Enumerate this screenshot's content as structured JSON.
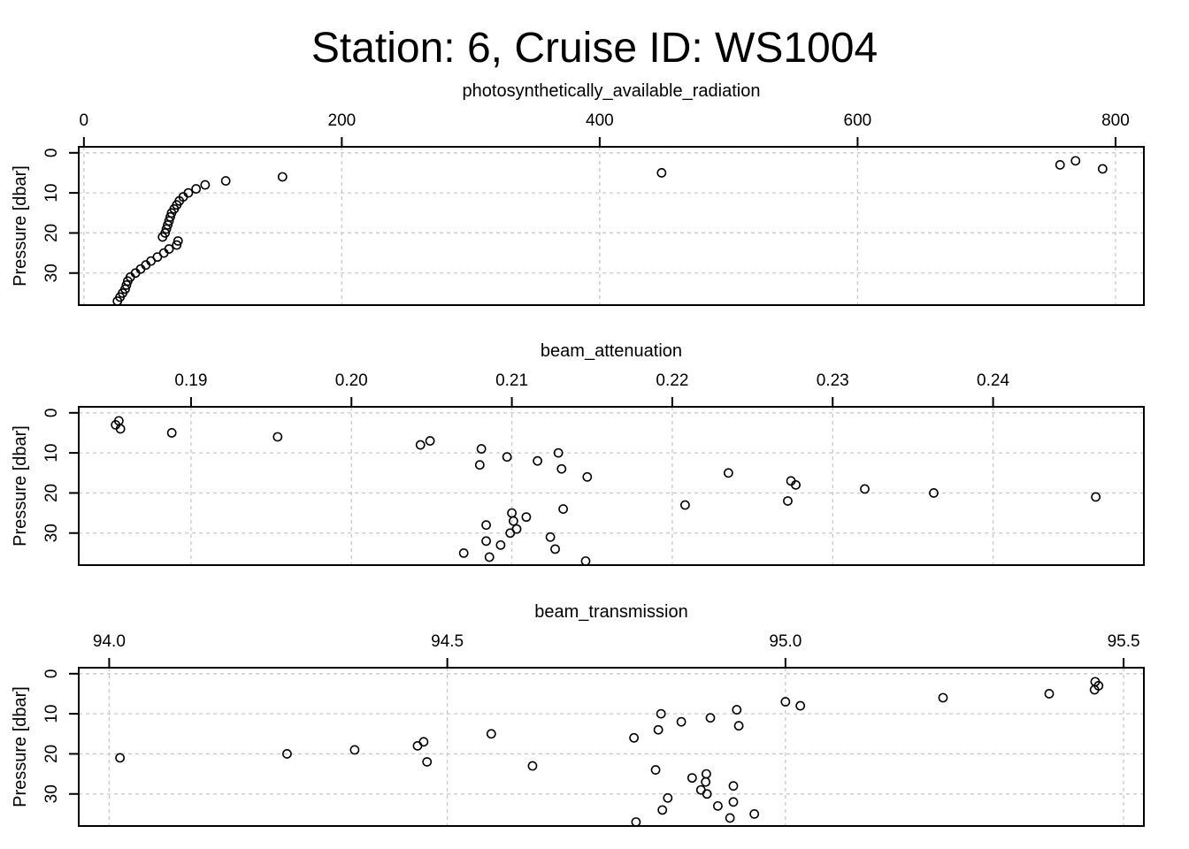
{
  "title": "Station: 6, Cruise ID: WS1004",
  "chart_data": [
    {
      "type": "scatter",
      "title": "photosynthetically_available_radiation",
      "ylabel": "Pressure [dbar]",
      "xlim": [
        -4,
        822
      ],
      "ylim": [
        38,
        -1.5
      ],
      "y_reversed": true,
      "x_ticks": [
        0,
        200,
        400,
        600,
        800
      ],
      "x_tick_labels": [
        "0",
        "200",
        "400",
        "600",
        "800"
      ],
      "y_ticks": [
        0,
        10,
        20,
        30
      ],
      "y_tick_labels": [
        "0",
        "10",
        "20",
        "30"
      ],
      "grid": true,
      "points": [
        {
          "x": 769,
          "y": 2
        },
        {
          "x": 757,
          "y": 3
        },
        {
          "x": 790,
          "y": 4
        },
        {
          "x": 448,
          "y": 5
        },
        {
          "x": 154,
          "y": 6
        },
        {
          "x": 110,
          "y": 7
        },
        {
          "x": 94,
          "y": 8
        },
        {
          "x": 87,
          "y": 9
        },
        {
          "x": 81,
          "y": 10
        },
        {
          "x": 77,
          "y": 11
        },
        {
          "x": 74,
          "y": 12
        },
        {
          "x": 72,
          "y": 13
        },
        {
          "x": 70,
          "y": 14
        },
        {
          "x": 68,
          "y": 15
        },
        {
          "x": 67,
          "y": 16
        },
        {
          "x": 66,
          "y": 17
        },
        {
          "x": 65,
          "y": 18
        },
        {
          "x": 64,
          "y": 19
        },
        {
          "x": 63,
          "y": 20
        },
        {
          "x": 61,
          "y": 21
        },
        {
          "x": 73,
          "y": 22
        },
        {
          "x": 72,
          "y": 23
        },
        {
          "x": 66,
          "y": 24
        },
        {
          "x": 62,
          "y": 25
        },
        {
          "x": 57,
          "y": 26
        },
        {
          "x": 52,
          "y": 27
        },
        {
          "x": 48,
          "y": 28
        },
        {
          "x": 44,
          "y": 29
        },
        {
          "x": 40,
          "y": 30
        },
        {
          "x": 36,
          "y": 31
        },
        {
          "x": 34,
          "y": 32
        },
        {
          "x": 33,
          "y": 33
        },
        {
          "x": 32,
          "y": 34
        },
        {
          "x": 30,
          "y": 35
        },
        {
          "x": 28,
          "y": 36
        },
        {
          "x": 26,
          "y": 37
        }
      ]
    },
    {
      "type": "scatter",
      "title": "beam_attenuation",
      "ylabel": "Pressure [dbar]",
      "xlim": [
        0.183,
        0.2494
      ],
      "ylim": [
        38,
        -1.5
      ],
      "y_reversed": true,
      "x_ticks": [
        0.19,
        0.2,
        0.21,
        0.22,
        0.23,
        0.24
      ],
      "x_tick_labels": [
        "0.19",
        "0.20",
        "0.21",
        "0.22",
        "0.23",
        "0.24"
      ],
      "y_ticks": [
        0,
        10,
        20,
        30
      ],
      "y_tick_labels": [
        "0",
        "10",
        "20",
        "30"
      ],
      "grid": true,
      "points": [
        {
          "x": 0.1855,
          "y": 2
        },
        {
          "x": 0.1853,
          "y": 3
        },
        {
          "x": 0.1856,
          "y": 4
        },
        {
          "x": 0.1888,
          "y": 5
        },
        {
          "x": 0.1954,
          "y": 6
        },
        {
          "x": 0.2049,
          "y": 7
        },
        {
          "x": 0.2043,
          "y": 8
        },
        {
          "x": 0.2081,
          "y": 9
        },
        {
          "x": 0.2129,
          "y": 10
        },
        {
          "x": 0.2097,
          "y": 11
        },
        {
          "x": 0.2116,
          "y": 12
        },
        {
          "x": 0.208,
          "y": 13
        },
        {
          "x": 0.2131,
          "y": 14
        },
        {
          "x": 0.2235,
          "y": 15
        },
        {
          "x": 0.2147,
          "y": 16
        },
        {
          "x": 0.2274,
          "y": 17
        },
        {
          "x": 0.2277,
          "y": 18
        },
        {
          "x": 0.232,
          "y": 19
        },
        {
          "x": 0.2363,
          "y": 20
        },
        {
          "x": 0.2464,
          "y": 21
        },
        {
          "x": 0.2272,
          "y": 22
        },
        {
          "x": 0.2208,
          "y": 23
        },
        {
          "x": 0.2132,
          "y": 24
        },
        {
          "x": 0.21,
          "y": 25
        },
        {
          "x": 0.2109,
          "y": 26
        },
        {
          "x": 0.2101,
          "y": 27
        },
        {
          "x": 0.2084,
          "y": 28
        },
        {
          "x": 0.2103,
          "y": 29
        },
        {
          "x": 0.2099,
          "y": 30
        },
        {
          "x": 0.2124,
          "y": 31
        },
        {
          "x": 0.2084,
          "y": 32
        },
        {
          "x": 0.2093,
          "y": 33
        },
        {
          "x": 0.2127,
          "y": 34
        },
        {
          "x": 0.207,
          "y": 35
        },
        {
          "x": 0.2086,
          "y": 36
        },
        {
          "x": 0.2146,
          "y": 37
        }
      ]
    },
    {
      "type": "scatter",
      "title": "beam_transmission",
      "ylabel": "Pressure [dbar]",
      "xlim": [
        93.955,
        95.53
      ],
      "ylim": [
        38,
        -1.5
      ],
      "y_reversed": true,
      "x_ticks": [
        94.0,
        94.5,
        95.0,
        95.5
      ],
      "x_tick_labels": [
        "94.0",
        "94.5",
        "95.0",
        "95.5"
      ],
      "y_ticks": [
        0,
        10,
        20,
        30
      ],
      "y_tick_labels": [
        "0",
        "10",
        "20",
        "30"
      ],
      "grid": true,
      "points": [
        {
          "x": 95.458,
          "y": 2
        },
        {
          "x": 95.463,
          "y": 3
        },
        {
          "x": 95.457,
          "y": 4
        },
        {
          "x": 95.39,
          "y": 5
        },
        {
          "x": 95.233,
          "y": 6
        },
        {
          "x": 95.0,
          "y": 7
        },
        {
          "x": 95.022,
          "y": 8
        },
        {
          "x": 94.928,
          "y": 9
        },
        {
          "x": 94.816,
          "y": 10
        },
        {
          "x": 94.889,
          "y": 11
        },
        {
          "x": 94.846,
          "y": 12
        },
        {
          "x": 94.931,
          "y": 13
        },
        {
          "x": 94.812,
          "y": 14
        },
        {
          "x": 94.565,
          "y": 15
        },
        {
          "x": 94.776,
          "y": 16
        },
        {
          "x": 94.465,
          "y": 17
        },
        {
          "x": 94.456,
          "y": 18
        },
        {
          "x": 94.363,
          "y": 19
        },
        {
          "x": 94.263,
          "y": 20
        },
        {
          "x": 94.016,
          "y": 21
        },
        {
          "x": 94.47,
          "y": 22
        },
        {
          "x": 94.626,
          "y": 23
        },
        {
          "x": 94.808,
          "y": 24
        },
        {
          "x": 94.883,
          "y": 25
        },
        {
          "x": 94.862,
          "y": 26
        },
        {
          "x": 94.882,
          "y": 27
        },
        {
          "x": 94.923,
          "y": 28
        },
        {
          "x": 94.875,
          "y": 29
        },
        {
          "x": 94.884,
          "y": 30
        },
        {
          "x": 94.826,
          "y": 31
        },
        {
          "x": 94.923,
          "y": 32
        },
        {
          "x": 94.9,
          "y": 33
        },
        {
          "x": 94.818,
          "y": 34
        },
        {
          "x": 94.954,
          "y": 35
        },
        {
          "x": 94.918,
          "y": 36
        },
        {
          "x": 94.779,
          "y": 37
        }
      ]
    }
  ]
}
